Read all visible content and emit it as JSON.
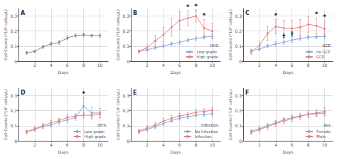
{
  "chart_data": [
    {
      "type": "line",
      "title": "A",
      "xlabel": "Days",
      "ylabel": "Cell Counts (*10² cells/μL)",
      "x": [
        1,
        2,
        3,
        4,
        5,
        6,
        7,
        8,
        9,
        10
      ],
      "series": [
        {
          "color": "#888888",
          "values": [
            0.055,
            0.065,
            0.095,
            0.115,
            0.125,
            0.155,
            0.17,
            0.175,
            0.17,
            0.17
          ],
          "errors": [
            0.008,
            0.008,
            0.01,
            0.012,
            0.012,
            0.012,
            0.01,
            0.01,
            0.008,
            0.01
          ]
        }
      ],
      "xlim": [
        0,
        11
      ],
      "xticks": [
        2,
        4,
        6,
        8,
        10
      ],
      "ylim": [
        0.0,
        0.35
      ],
      "yticks": [
        0,
        0.1,
        0.2,
        0.3
      ],
      "grid": true,
      "marker": "circle"
    },
    {
      "type": "line",
      "title": "B",
      "xlabel": "Days",
      "ylabel": "Cell Counts (*10² cells/μL)",
      "x": [
        1,
        2,
        3,
        4,
        5,
        6,
        7,
        8,
        9,
        10
      ],
      "series": [
        {
          "name": "Low grade",
          "color": "#8FA8D8",
          "values": [
            0.065,
            0.075,
            0.09,
            0.1,
            0.115,
            0.125,
            0.14,
            0.15,
            0.16,
            0.165
          ],
          "errors": [
            0.008,
            0.008,
            0.01,
            0.012,
            0.012,
            0.015,
            0.012,
            0.012,
            0.012,
            0.015
          ]
        },
        {
          "name": "High grade",
          "color": "#E88080",
          "values": [
            0.065,
            0.09,
            0.135,
            0.175,
            0.225,
            0.27,
            0.285,
            0.3,
            0.22,
            0.2
          ],
          "errors": [
            0.01,
            0.018,
            0.035,
            0.048,
            0.058,
            0.058,
            0.05,
            0.04,
            0.055,
            0.05
          ]
        }
      ],
      "annotations": [
        {
          "x": 7,
          "series": "High grade",
          "text": "*"
        },
        {
          "x": 8,
          "series": "High grade",
          "text": "*"
        },
        {
          "x": 9,
          "series": "High grade",
          "text": "*"
        }
      ],
      "legend": "lower right",
      "legend_title": "HHS",
      "xlim": [
        0,
        11
      ],
      "xticks": [
        2,
        4,
        6,
        8,
        10
      ],
      "ylim": [
        0.0,
        0.35
      ],
      "yticks": [
        0,
        0.1,
        0.2,
        0.3
      ],
      "grid": true,
      "marker": "circle"
    },
    {
      "type": "line",
      "title": "C",
      "xlabel": "Days",
      "ylabel": "Cell Counts (*10² cells/μL)",
      "x": [
        1,
        2,
        3,
        4,
        5,
        6,
        7,
        8,
        9,
        10
      ],
      "series": [
        {
          "name": "no GCE",
          "color": "#8FA8D8",
          "values": [
            0.07,
            0.08,
            0.1,
            0.115,
            0.125,
            0.14,
            0.15,
            0.16,
            0.162,
            0.165
          ],
          "errors": [
            0.01,
            0.01,
            0.012,
            0.015,
            0.015,
            0.015,
            0.012,
            0.012,
            0.012,
            0.015
          ]
        },
        {
          "name": "GCE",
          "color": "#E88080",
          "values": [
            0.06,
            0.105,
            0.185,
            0.23,
            0.22,
            0.218,
            0.225,
            0.245,
            0.235,
            0.215
          ],
          "errors": [
            0.015,
            0.028,
            0.048,
            0.048,
            0.052,
            0.052,
            0.052,
            0.052,
            0.052,
            0.052
          ]
        }
      ],
      "annotations": [
        {
          "x": 4,
          "series": "GCE",
          "text": "*"
        },
        {
          "x": 9,
          "series": "GCE",
          "text": "*"
        },
        {
          "x": 10,
          "series": "GCE",
          "text": "*"
        },
        {
          "x": 5,
          "series": "no GCE",
          "text": "†"
        },
        {
          "x": 6,
          "series": "no GCE",
          "text": "†"
        }
      ],
      "legend": "lower right",
      "legend_title": "GCE",
      "xlim": [
        0,
        11
      ],
      "xticks": [
        2,
        4,
        6,
        8,
        10
      ],
      "ylim": [
        0.0,
        0.35
      ],
      "yticks": [
        0,
        0.1,
        0.2,
        0.3
      ],
      "grid": true,
      "marker": "circle"
    },
    {
      "type": "line",
      "title": "D",
      "xlabel": "Days",
      "ylabel": "Cell Counts (*10² cells/μL)",
      "x": [
        1,
        2,
        3,
        4,
        5,
        6,
        7,
        8,
        9,
        10
      ],
      "series": [
        {
          "name": "Low grade",
          "color": "#8FA8D8",
          "values": [
            0.06,
            0.075,
            0.095,
            0.105,
            0.125,
            0.14,
            0.155,
            0.23,
            0.185,
            0.185
          ],
          "errors": [
            0.01,
            0.012,
            0.015,
            0.015,
            0.018,
            0.018,
            0.018,
            0.055,
            0.04,
            0.03
          ]
        },
        {
          "name": "High grade",
          "color": "#E88080",
          "values": [
            0.06,
            0.08,
            0.1,
            0.12,
            0.135,
            0.155,
            0.165,
            0.17,
            0.17,
            0.175
          ],
          "errors": [
            0.01,
            0.012,
            0.015,
            0.015,
            0.015,
            0.018,
            0.015,
            0.018,
            0.018,
            0.018
          ]
        }
      ],
      "annotations": [
        {
          "x": 8,
          "series": "Low grade",
          "text": "*"
        }
      ],
      "legend": "lower right",
      "legend_title": "mFS",
      "xlim": [
        0,
        11
      ],
      "xticks": [
        2,
        4,
        6,
        8,
        10
      ],
      "ylim": [
        0.0,
        0.35
      ],
      "yticks": [
        0,
        0.1,
        0.2,
        0.3
      ],
      "grid": true,
      "marker": "circle"
    },
    {
      "type": "line",
      "title": "E",
      "xlabel": "Days",
      "ylabel": "Cell Counts (*10² cells/μL)",
      "x": [
        1,
        2,
        3,
        4,
        5,
        6,
        7,
        8,
        9,
        10
      ],
      "series": [
        {
          "name": "No Infection",
          "color": "#8FA8D8",
          "values": [
            0.06,
            0.075,
            0.095,
            0.115,
            0.135,
            0.15,
            0.16,
            0.17,
            0.175,
            0.18
          ],
          "errors": [
            0.01,
            0.01,
            0.012,
            0.012,
            0.012,
            0.012,
            0.012,
            0.012,
            0.012,
            0.015
          ]
        },
        {
          "name": "Infection",
          "color": "#E88080",
          "values": [
            0.065,
            0.085,
            0.105,
            0.13,
            0.15,
            0.165,
            0.175,
            0.19,
            0.195,
            0.205
          ],
          "errors": [
            0.012,
            0.015,
            0.018,
            0.018,
            0.018,
            0.018,
            0.015,
            0.018,
            0.018,
            0.02
          ]
        }
      ],
      "legend": "lower right",
      "legend_title": "Infection",
      "xlim": [
        0,
        11
      ],
      "xticks": [
        2,
        4,
        6,
        8,
        10
      ],
      "ylim": [
        0.0,
        0.35
      ],
      "yticks": [
        0,
        0.1,
        0.2,
        0.3
      ],
      "grid": true,
      "marker": "circle"
    },
    {
      "type": "line",
      "title": "F",
      "xlabel": "Days",
      "ylabel": "Cell Counts (*10² cells/μL)",
      "x": [
        1,
        2,
        3,
        4,
        5,
        6,
        7,
        8,
        9,
        10
      ],
      "series": [
        {
          "name": "Female",
          "color": "#8FA8D8",
          "values": [
            0.065,
            0.08,
            0.1,
            0.12,
            0.14,
            0.155,
            0.165,
            0.175,
            0.18,
            0.185
          ],
          "errors": [
            0.01,
            0.01,
            0.012,
            0.012,
            0.012,
            0.012,
            0.012,
            0.012,
            0.012,
            0.015
          ]
        },
        {
          "name": "Male",
          "color": "#E88080",
          "values": [
            0.055,
            0.075,
            0.095,
            0.115,
            0.13,
            0.148,
            0.162,
            0.178,
            0.185,
            0.195
          ],
          "errors": [
            0.012,
            0.015,
            0.018,
            0.018,
            0.018,
            0.018,
            0.018,
            0.022,
            0.022,
            0.025
          ]
        }
      ],
      "legend": "lower right",
      "legend_title": "Sex",
      "xlim": [
        0,
        11
      ],
      "xticks": [
        2,
        4,
        6,
        8,
        10
      ],
      "ylim": [
        0.0,
        0.35
      ],
      "yticks": [
        0,
        0.1,
        0.2,
        0.3
      ],
      "grid": true,
      "marker": "circle"
    }
  ]
}
